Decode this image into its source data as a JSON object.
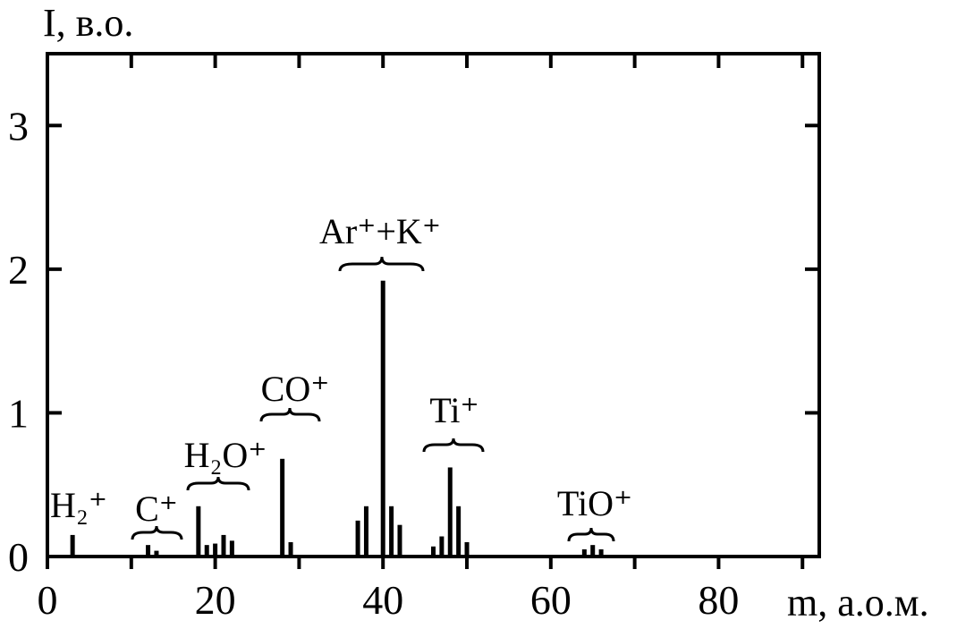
{
  "chart_data": {
    "type": "bar",
    "y_label": "I, в.о.",
    "x_label": "m, а.о.м.",
    "x": [
      3,
      12,
      13,
      18,
      19,
      20,
      21,
      22,
      28,
      29,
      37,
      38,
      40,
      41,
      42,
      46,
      47,
      48,
      49,
      50,
      64,
      65,
      66
    ],
    "values": [
      0.15,
      0.08,
      0.04,
      0.35,
      0.08,
      0.09,
      0.15,
      0.11,
      0.68,
      0.1,
      0.25,
      0.35,
      1.92,
      0.35,
      0.22,
      0.07,
      0.14,
      0.62,
      0.35,
      0.1,
      0.05,
      0.08,
      0.05
    ],
    "color": "#000000",
    "xlim": [
      0,
      92
    ],
    "ylim": [
      0,
      3.5
    ],
    "xticks": [
      0,
      20,
      40,
      60,
      80
    ],
    "xminor_ticks": [
      10,
      30,
      50,
      70,
      90
    ],
    "yticks": [
      0,
      1,
      2,
      3
    ],
    "annotations": [
      "H₂⁺",
      "C⁺",
      "H₂O⁺",
      "CO⁺",
      "Ar⁺+K⁺",
      "Ti⁺",
      "TiO⁺"
    ]
  }
}
